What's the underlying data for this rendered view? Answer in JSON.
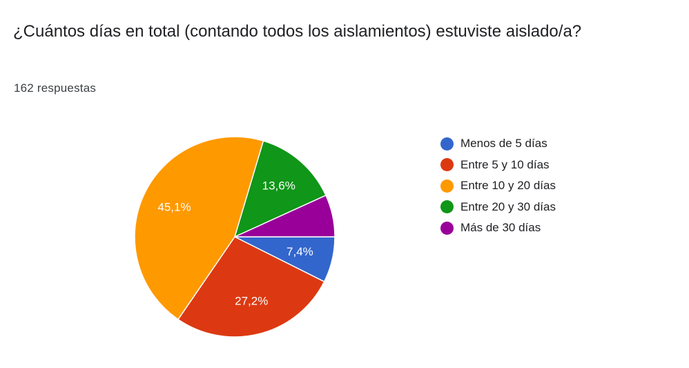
{
  "question": {
    "title": "¿Cuántos días en total (contando todos los aislamientos) estuviste aislado/a?",
    "responses": "162 respuestas"
  },
  "chart_data": {
    "type": "pie",
    "title": "¿Cuántos días en total (contando todos los aislamientos) estuviste aislado/a?",
    "total_responses": 162,
    "categories": [
      "Menos de 5 días",
      "Entre 5 y 10 días",
      "Entre 10 y 20 días",
      "Entre 20 y 30 días",
      "Más de 30 días"
    ],
    "values": [
      7.4,
      27.2,
      45.1,
      13.6,
      6.8
    ],
    "data_labels": [
      "7,4%",
      "27,2%",
      "45,1%",
      "13,6%",
      ""
    ],
    "colors": [
      "#3366cc",
      "#dc3912",
      "#ff9900",
      "#109618",
      "#990099"
    ],
    "legend_position": "right"
  }
}
